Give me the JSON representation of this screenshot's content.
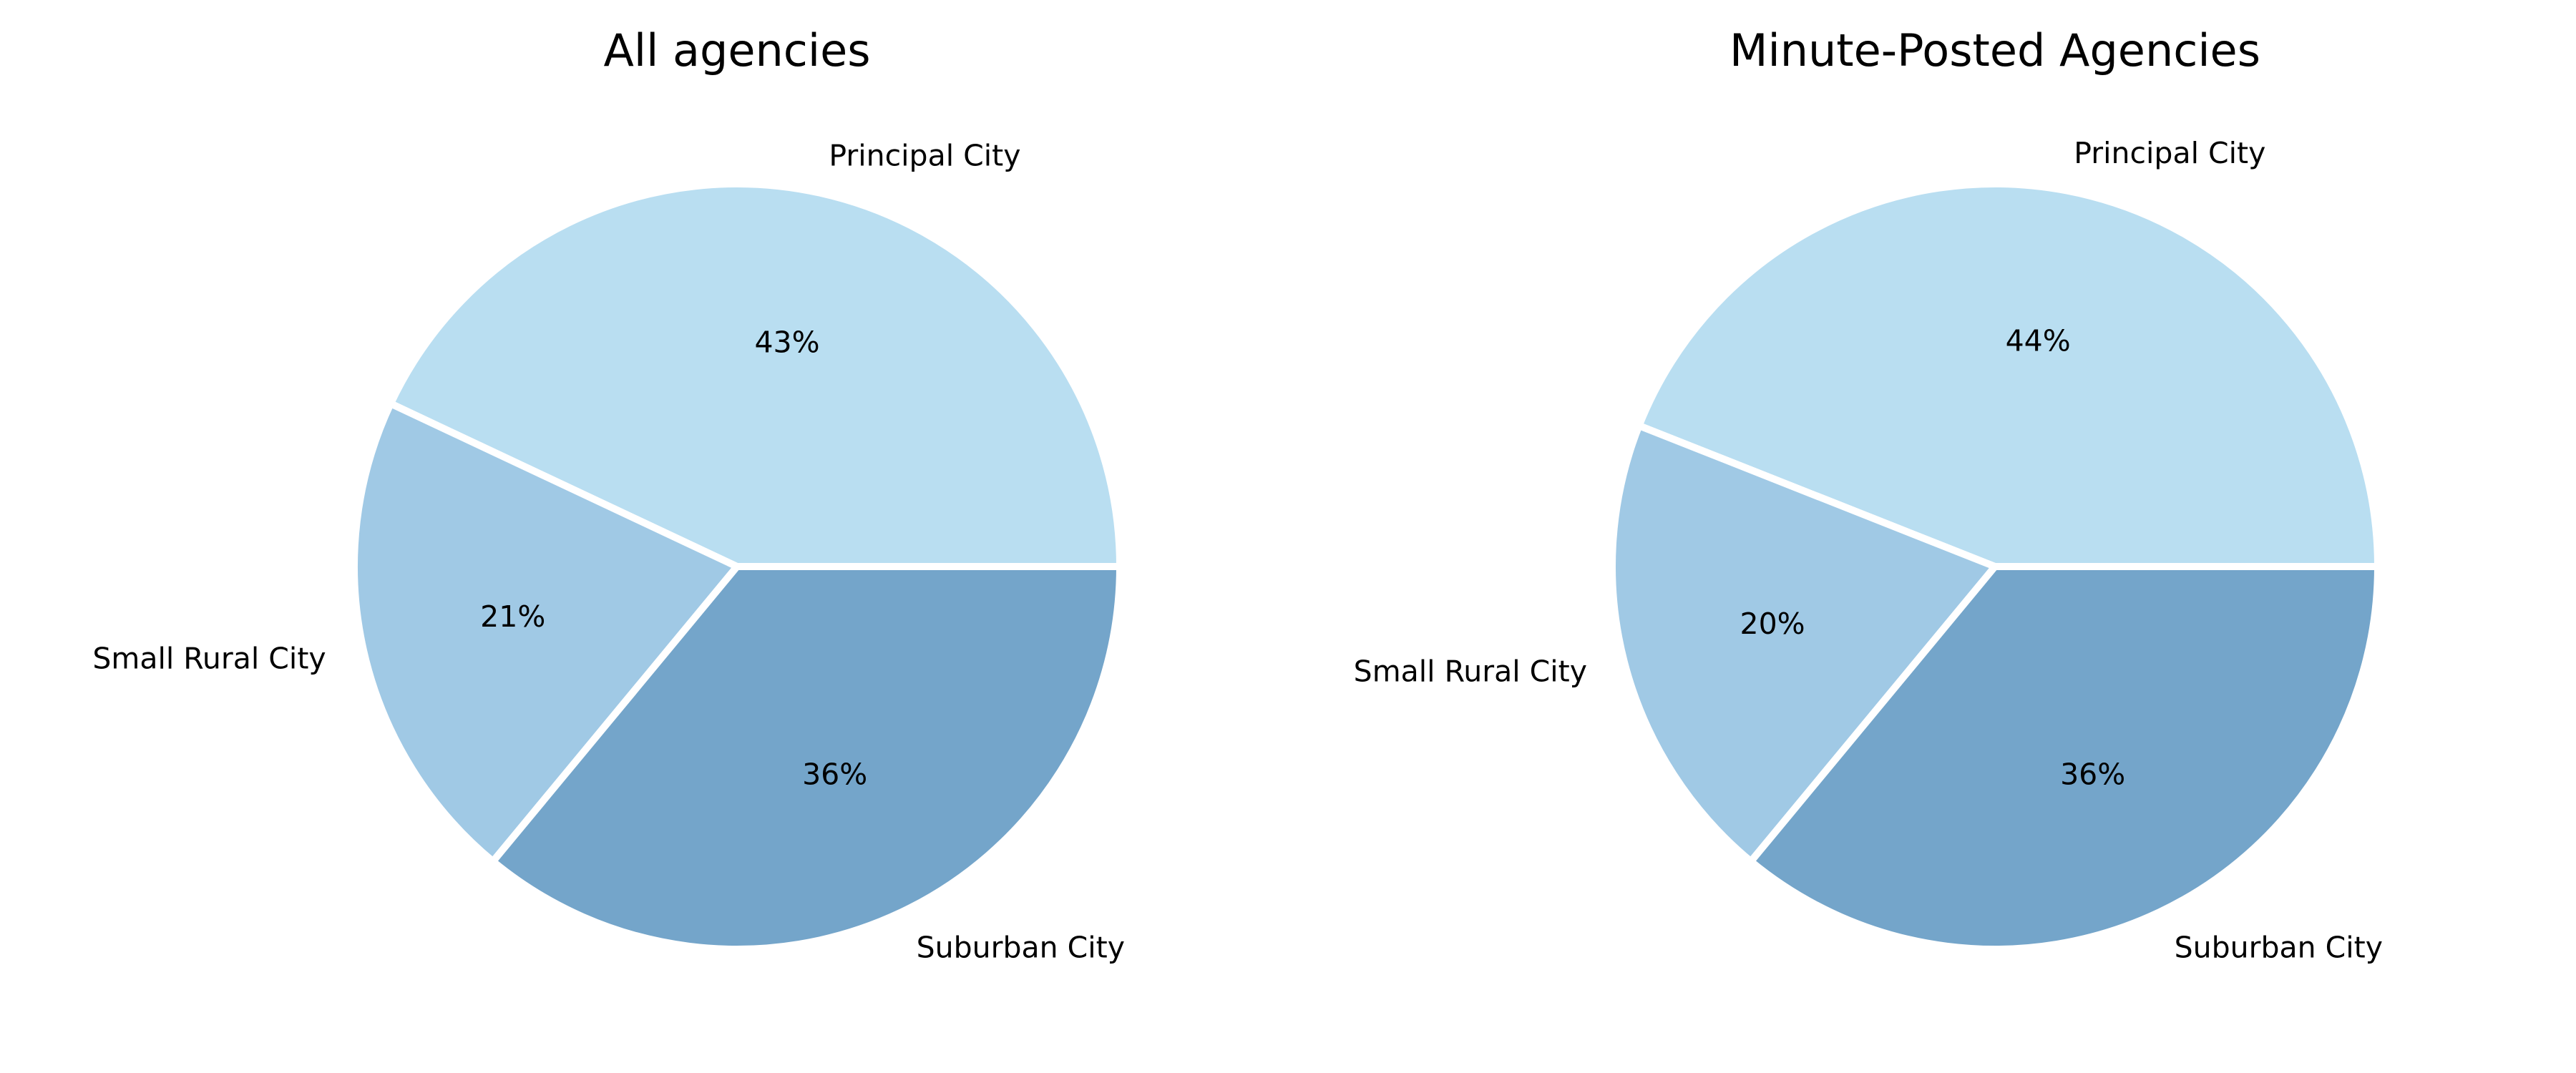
{
  "chart_data": [
    {
      "type": "pie",
      "title": "All agencies",
      "slices": [
        {
          "label": "Principal City",
          "value": 43,
          "display": "43%",
          "color": "#b9def1"
        },
        {
          "label": "Small Rural City",
          "value": 21,
          "display": "21%",
          "color": "#a0c9e5"
        },
        {
          "label": "Suburban City",
          "value": 36,
          "display": "36%",
          "color": "#74a5ca"
        }
      ],
      "start_angle": 0,
      "direction": "counterclockwise"
    },
    {
      "type": "pie",
      "title": "Minute-Posted Agencies",
      "slices": [
        {
          "label": "Principal City",
          "value": 44,
          "display": "44%",
          "color": "#b9def1"
        },
        {
          "label": "Small Rural City",
          "value": 20,
          "display": "20%",
          "color": "#a0c9e5"
        },
        {
          "label": "Suburban City",
          "value": 36,
          "display": "36%",
          "color": "#74a5ca"
        }
      ],
      "start_angle": 0,
      "direction": "counterclockwise"
    }
  ]
}
